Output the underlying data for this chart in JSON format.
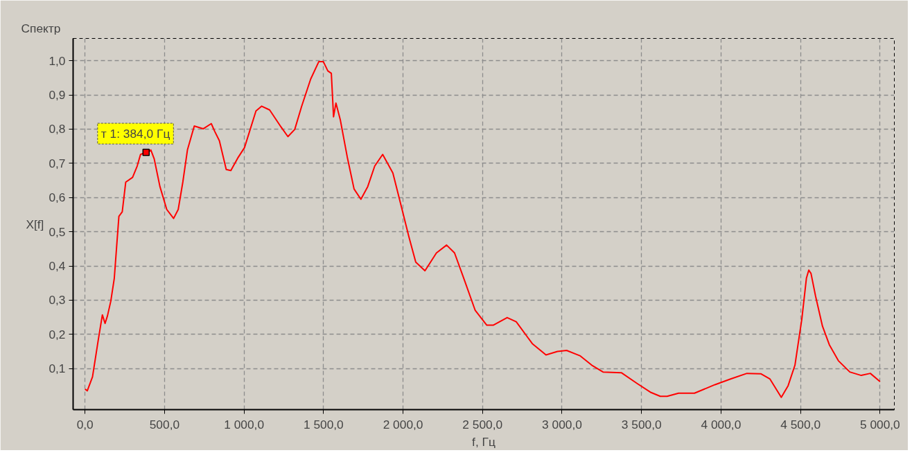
{
  "chart_data": {
    "type": "line",
    "title": "Спектр",
    "xlabel": "f, Гц",
    "ylabel": "X[f]",
    "x": [
      0,
      14,
      47,
      83,
      109,
      126,
      141,
      162,
      184,
      198,
      213,
      234,
      256,
      299,
      328,
      349,
      384,
      414,
      435,
      471,
      514,
      557,
      586,
      615,
      644,
      687,
      744,
      794,
      816,
      845,
      888,
      917,
      960,
      1003,
      1075,
      1111,
      1161,
      1233,
      1276,
      1319,
      1362,
      1419,
      1470,
      1499,
      1527,
      1549,
      1563,
      1578,
      1606,
      1649,
      1692,
      1735,
      1778,
      1822,
      1872,
      1936,
      1994,
      2037,
      2080,
      2138,
      2210,
      2274,
      2324,
      2382,
      2454,
      2526,
      2569,
      2655,
      2712,
      2813,
      2899,
      2971,
      3029,
      3115,
      3187,
      3258,
      3373,
      3474,
      3560,
      3618,
      3661,
      3733,
      3833,
      3962,
      4063,
      4163,
      4250,
      4307,
      4379,
      4422,
      4465,
      4508,
      4537,
      4552,
      4566,
      4595,
      4638,
      4681,
      4738,
      4810,
      4882,
      4939,
      5000
    ],
    "series": [
      {
        "color": "#ff0000",
        "values": [
          0.04,
          0.035,
          0.076,
          0.183,
          0.257,
          0.232,
          0.254,
          0.297,
          0.364,
          0.452,
          0.545,
          0.558,
          0.645,
          0.659,
          0.692,
          0.726,
          0.732,
          0.739,
          0.713,
          0.632,
          0.565,
          0.539,
          0.565,
          0.645,
          0.739,
          0.809,
          0.801,
          0.816,
          0.793,
          0.766,
          0.682,
          0.679,
          0.715,
          0.746,
          0.853,
          0.867,
          0.856,
          0.806,
          0.778,
          0.799,
          0.866,
          0.946,
          0.997,
          0.997,
          0.97,
          0.963,
          0.836,
          0.876,
          0.826,
          0.719,
          0.625,
          0.595,
          0.632,
          0.692,
          0.726,
          0.672,
          0.565,
          0.485,
          0.411,
          0.386,
          0.438,
          0.461,
          0.438,
          0.364,
          0.27,
          0.227,
          0.227,
          0.249,
          0.237,
          0.173,
          0.14,
          0.15,
          0.153,
          0.137,
          0.11,
          0.09,
          0.088,
          0.056,
          0.03,
          0.019,
          0.019,
          0.028,
          0.028,
          0.053,
          0.07,
          0.086,
          0.085,
          0.07,
          0.016,
          0.05,
          0.11,
          0.244,
          0.364,
          0.388,
          0.378,
          0.311,
          0.224,
          0.17,
          0.123,
          0.09,
          0.08,
          0.086,
          0.062
        ]
      }
    ],
    "annotations": [
      {
        "text": "т 1: 384,0 Гц",
        "x": 384,
        "y": 0.732
      }
    ],
    "xlim": [
      -75,
      5090
    ],
    "ylim": [
      -0.02,
      1.065
    ],
    "xticks": [
      {
        "value": 0,
        "label": "0,0"
      },
      {
        "value": 500,
        "label": "500,0"
      },
      {
        "value": 1000,
        "label": "1 000,0"
      },
      {
        "value": 1500,
        "label": "1 500,0"
      },
      {
        "value": 2000,
        "label": "2 000,0"
      },
      {
        "value": 2500,
        "label": "2 500,0"
      },
      {
        "value": 3000,
        "label": "3 000,0"
      },
      {
        "value": 3500,
        "label": "3 500,0"
      },
      {
        "value": 4000,
        "label": "4 000,0"
      },
      {
        "value": 4500,
        "label": "4 500,0"
      },
      {
        "value": 5000,
        "label": "5 000,0"
      }
    ],
    "yticks": [
      {
        "value": 0.1,
        "label": "0,1"
      },
      {
        "value": 0.2,
        "label": "0,2"
      },
      {
        "value": 0.3,
        "label": "0,3"
      },
      {
        "value": 0.4,
        "label": "0,4"
      },
      {
        "value": 0.5,
        "label": "0,5"
      },
      {
        "value": 0.6,
        "label": "0,6"
      },
      {
        "value": 0.7,
        "label": "0,7"
      },
      {
        "value": 0.8,
        "label": "0,8"
      },
      {
        "value": 0.9,
        "label": "0,9"
      },
      {
        "value": 1.0,
        "label": "1,0"
      }
    ],
    "grid": true,
    "marker": "none",
    "line_style": "solid"
  }
}
